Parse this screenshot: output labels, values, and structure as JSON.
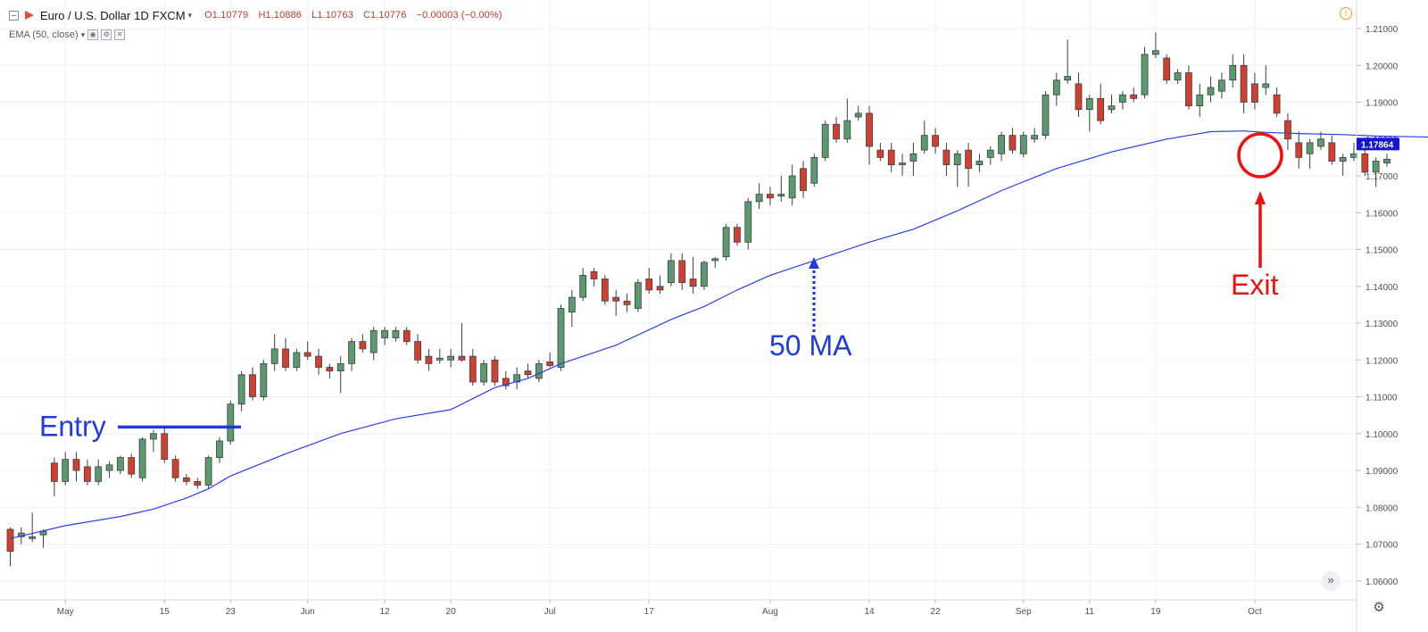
{
  "header": {
    "title": "Euro / U.S. Dollar",
    "interval": "1D",
    "exchange": "FXCM",
    "open": "O1.10779",
    "high": "H1.10886",
    "low": "L1.10763",
    "close": "C1.10776",
    "change": "−0.00003 (−0.00%)"
  },
  "indicator": {
    "label": "EMA (50, close)"
  },
  "colors": {
    "up": "#5b9a6e",
    "down": "#d1402e",
    "ema": "#2d3ef0",
    "annotation_blue": "#1f3ae0",
    "annotation_red": "#ee1111",
    "price_label": "#1414d6"
  },
  "icons": [
    "collapse-icon",
    "flag-icon",
    "chevron-down-icon",
    "eye-icon",
    "gear-icon",
    "close-icon",
    "warning-icon",
    "double-chevron-right-icon",
    "settings-gear-icon"
  ],
  "chart_data": {
    "type": "candlestick",
    "title": "Euro / U.S. Dollar, 1D, FXCM",
    "ylim": [
      1.055,
      1.212
    ],
    "y_ticks": [
      "1.21000",
      "1.20000",
      "1.19000",
      "1.18000",
      "1.17000",
      "1.16000",
      "1.15000",
      "1.14000",
      "1.13000",
      "1.12000",
      "1.11000",
      "1.10000",
      "1.09000",
      "1.08000",
      "1.07000",
      "1.06000"
    ],
    "x_tick_labels": [
      {
        "label": "May",
        "bar": 5
      },
      {
        "label": "15",
        "bar": 14
      },
      {
        "label": "23",
        "bar": 20
      },
      {
        "label": "Jun",
        "bar": 27
      },
      {
        "label": "12",
        "bar": 34
      },
      {
        "label": "20",
        "bar": 40
      },
      {
        "label": "Jul",
        "bar": 49
      },
      {
        "label": "17",
        "bar": 58
      },
      {
        "label": "Aug",
        "bar": 69
      },
      {
        "label": "14",
        "bar": 78
      },
      {
        "label": "22",
        "bar": 84
      },
      {
        "label": "Sep",
        "bar": 92
      },
      {
        "label": "11",
        "bar": 98
      },
      {
        "label": "19",
        "bar": 104
      },
      {
        "label": "Oct",
        "bar": 113
      }
    ],
    "ohlc": [
      [
        1.074,
        1.0745,
        1.064,
        1.068
      ],
      [
        1.072,
        1.0745,
        1.07,
        1.073
      ],
      [
        1.0715,
        1.0785,
        1.0705,
        1.072
      ],
      [
        1.0725,
        1.074,
        1.069,
        1.0735
      ],
      [
        1.092,
        1.0935,
        1.083,
        1.087
      ],
      [
        1.087,
        1.095,
        1.086,
        1.093
      ],
      [
        1.093,
        1.095,
        1.087,
        1.09
      ],
      [
        1.091,
        1.093,
        1.086,
        1.087
      ],
      [
        1.087,
        1.093,
        1.086,
        1.091
      ],
      [
        1.09,
        1.0925,
        1.088,
        1.0915
      ],
      [
        1.09,
        1.094,
        1.089,
        1.0935
      ],
      [
        1.0935,
        1.0945,
        1.088,
        1.089
      ],
      [
        1.088,
        1.099,
        1.087,
        1.0985
      ],
      [
        1.0985,
        1.101,
        1.095,
        1.1
      ],
      [
        1.1,
        1.102,
        1.092,
        1.093
      ],
      [
        1.093,
        1.094,
        1.087,
        1.088
      ],
      [
        1.088,
        1.089,
        1.086,
        1.087
      ],
      [
        1.087,
        1.088,
        1.085,
        1.086
      ],
      [
        1.086,
        1.094,
        1.085,
        1.0935
      ],
      [
        1.0935,
        1.099,
        1.092,
        1.098
      ],
      [
        1.098,
        1.109,
        1.097,
        1.108
      ],
      [
        1.108,
        1.117,
        1.106,
        1.116
      ],
      [
        1.116,
        1.118,
        1.109,
        1.11
      ],
      [
        1.11,
        1.12,
        1.109,
        1.119
      ],
      [
        1.119,
        1.127,
        1.117,
        1.123
      ],
      [
        1.123,
        1.126,
        1.117,
        1.118
      ],
      [
        1.118,
        1.123,
        1.117,
        1.122
      ],
      [
        1.122,
        1.125,
        1.12,
        1.121
      ],
      [
        1.121,
        1.123,
        1.116,
        1.118
      ],
      [
        1.118,
        1.119,
        1.115,
        1.117
      ],
      [
        1.117,
        1.121,
        1.111,
        1.119
      ],
      [
        1.119,
        1.126,
        1.117,
        1.125
      ],
      [
        1.125,
        1.127,
        1.122,
        1.123
      ],
      [
        1.122,
        1.129,
        1.12,
        1.128
      ],
      [
        1.126,
        1.129,
        1.124,
        1.128
      ],
      [
        1.126,
        1.129,
        1.125,
        1.128
      ],
      [
        1.128,
        1.129,
        1.124,
        1.125
      ],
      [
        1.125,
        1.127,
        1.119,
        1.12
      ],
      [
        1.121,
        1.123,
        1.117,
        1.119
      ],
      [
        1.12,
        1.123,
        1.119,
        1.1205
      ],
      [
        1.12,
        1.123,
        1.118,
        1.121
      ],
      [
        1.121,
        1.13,
        1.1195,
        1.12
      ],
      [
        1.121,
        1.123,
        1.113,
        1.114
      ],
      [
        1.114,
        1.12,
        1.113,
        1.119
      ],
      [
        1.12,
        1.121,
        1.113,
        1.114
      ],
      [
        1.115,
        1.117,
        1.112,
        1.113
      ],
      [
        1.114,
        1.118,
        1.112,
        1.116
      ],
      [
        1.117,
        1.119,
        1.115,
        1.116
      ],
      [
        1.115,
        1.12,
        1.114,
        1.119
      ],
      [
        1.1195,
        1.122,
        1.118,
        1.1185
      ],
      [
        1.118,
        1.135,
        1.117,
        1.134
      ],
      [
        1.133,
        1.139,
        1.129,
        1.137
      ],
      [
        1.137,
        1.145,
        1.136,
        1.143
      ],
      [
        1.144,
        1.145,
        1.14,
        1.142
      ],
      [
        1.142,
        1.143,
        1.135,
        1.136
      ],
      [
        1.137,
        1.139,
        1.132,
        1.136
      ],
      [
        1.136,
        1.138,
        1.133,
        1.135
      ],
      [
        1.134,
        1.142,
        1.133,
        1.141
      ],
      [
        1.142,
        1.145,
        1.138,
        1.139
      ],
      [
        1.14,
        1.143,
        1.138,
        1.139
      ],
      [
        1.141,
        1.149,
        1.14,
        1.147
      ],
      [
        1.147,
        1.149,
        1.139,
        1.141
      ],
      [
        1.142,
        1.148,
        1.138,
        1.14
      ],
      [
        1.14,
        1.147,
        1.139,
        1.1465
      ],
      [
        1.147,
        1.148,
        1.145,
        1.1475
      ],
      [
        1.148,
        1.157,
        1.147,
        1.156
      ],
      [
        1.156,
        1.157,
        1.151,
        1.152
      ],
      [
        1.152,
        1.164,
        1.15,
        1.163
      ],
      [
        1.163,
        1.168,
        1.161,
        1.165
      ],
      [
        1.165,
        1.167,
        1.162,
        1.164
      ],
      [
        1.1645,
        1.17,
        1.163,
        1.165
      ],
      [
        1.164,
        1.173,
        1.162,
        1.17
      ],
      [
        1.172,
        1.174,
        1.164,
        1.166
      ],
      [
        1.168,
        1.176,
        1.167,
        1.175
      ],
      [
        1.175,
        1.185,
        1.174,
        1.184
      ],
      [
        1.184,
        1.186,
        1.179,
        1.18
      ],
      [
        1.18,
        1.191,
        1.179,
        1.185
      ],
      [
        1.186,
        1.189,
        1.185,
        1.187
      ],
      [
        1.187,
        1.189,
        1.173,
        1.178
      ],
      [
        1.177,
        1.179,
        1.174,
        1.175
      ],
      [
        1.177,
        1.179,
        1.171,
        1.173
      ],
      [
        1.173,
        1.176,
        1.17,
        1.1735
      ],
      [
        1.174,
        1.179,
        1.17,
        1.176
      ],
      [
        1.177,
        1.185,
        1.176,
        1.181
      ],
      [
        1.181,
        1.183,
        1.176,
        1.178
      ],
      [
        1.177,
        1.179,
        1.17,
        1.173
      ],
      [
        1.173,
        1.177,
        1.167,
        1.176
      ],
      [
        1.177,
        1.179,
        1.167,
        1.172
      ],
      [
        1.173,
        1.176,
        1.171,
        1.174
      ],
      [
        1.175,
        1.178,
        1.173,
        1.177
      ],
      [
        1.176,
        1.182,
        1.174,
        1.181
      ],
      [
        1.181,
        1.183,
        1.176,
        1.177
      ],
      [
        1.176,
        1.182,
        1.175,
        1.181
      ],
      [
        1.18,
        1.183,
        1.179,
        1.181
      ],
      [
        1.181,
        1.193,
        1.18,
        1.192
      ],
      [
        1.192,
        1.198,
        1.189,
        1.196
      ],
      [
        1.196,
        1.207,
        1.195,
        1.197
      ],
      [
        1.195,
        1.198,
        1.186,
        1.188
      ],
      [
        1.188,
        1.192,
        1.182,
        1.191
      ],
      [
        1.191,
        1.195,
        1.184,
        1.185
      ],
      [
        1.188,
        1.192,
        1.187,
        1.189
      ],
      [
        1.19,
        1.193,
        1.188,
        1.192
      ],
      [
        1.192,
        1.194,
        1.19,
        1.191
      ],
      [
        1.192,
        1.205,
        1.191,
        1.203
      ],
      [
        1.203,
        1.209,
        1.202,
        1.204
      ],
      [
        1.202,
        1.203,
        1.195,
        1.196
      ],
      [
        1.196,
        1.199,
        1.195,
        1.198
      ],
      [
        1.198,
        1.2,
        1.188,
        1.189
      ],
      [
        1.189,
        1.195,
        1.186,
        1.192
      ],
      [
        1.192,
        1.197,
        1.19,
        1.194
      ],
      [
        1.193,
        1.198,
        1.191,
        1.196
      ],
      [
        1.196,
        1.203,
        1.194,
        1.2
      ],
      [
        1.2,
        1.203,
        1.187,
        1.19
      ],
      [
        1.195,
        1.198,
        1.188,
        1.19
      ],
      [
        1.194,
        1.2,
        1.192,
        1.195
      ],
      [
        1.192,
        1.194,
        1.186,
        1.187
      ],
      [
        1.185,
        1.187,
        1.177,
        1.18
      ],
      [
        1.179,
        1.182,
        1.172,
        1.175
      ],
      [
        1.176,
        1.18,
        1.172,
        1.179
      ],
      [
        1.178,
        1.182,
        1.177,
        1.18
      ],
      [
        1.179,
        1.181,
        1.173,
        1.174
      ],
      [
        1.174,
        1.176,
        1.17,
        1.175
      ],
      [
        1.175,
        1.179,
        1.174,
        1.176
      ],
      [
        1.176,
        1.178,
        1.17,
        1.171
      ],
      [
        1.171,
        1.175,
        1.167,
        1.174
      ],
      [
        1.1735,
        1.176,
        1.1725,
        1.1745
      ]
    ],
    "ema_series": {
      "name": "EMA (50, close)",
      "values": [
        [
          0,
          1.0715
        ],
        [
          5,
          1.075
        ],
        [
          10,
          1.0775
        ],
        [
          13,
          1.0795
        ],
        [
          16,
          1.0825
        ],
        [
          18,
          1.085
        ],
        [
          20,
          1.0885
        ],
        [
          25,
          1.0945
        ],
        [
          30,
          1.1
        ],
        [
          35,
          1.104
        ],
        [
          40,
          1.1065
        ],
        [
          44,
          1.1125
        ],
        [
          47,
          1.115
        ],
        [
          50,
          1.119
        ],
        [
          55,
          1.124
        ],
        [
          60,
          1.131
        ],
        [
          63,
          1.1345
        ],
        [
          66,
          1.139
        ],
        [
          69,
          1.143
        ],
        [
          74,
          1.148
        ],
        [
          78,
          1.152
        ],
        [
          82,
          1.1555
        ],
        [
          86,
          1.1605
        ],
        [
          90,
          1.166
        ],
        [
          95,
          1.172
        ],
        [
          100,
          1.1765
        ],
        [
          105,
          1.18
        ],
        [
          109,
          1.182
        ],
        [
          112,
          1.1822
        ],
        [
          114,
          1.1818
        ],
        [
          117,
          1.1815
        ],
        [
          121,
          1.1812
        ],
        [
          124,
          1.1808
        ],
        [
          128,
          1.1806
        ],
        [
          132,
          1.1802
        ],
        [
          135,
          1.1797
        ],
        [
          138,
          1.1792
        ],
        [
          141,
          1.1788
        ],
        [
          145,
          1.1787
        ],
        [
          148,
          1.1786
        ],
        [
          151,
          1.1786
        ],
        [
          155,
          1.1786
        ]
      ],
      "last_value": "1.17864"
    },
    "annotations": [
      {
        "text": "Entry",
        "color": "#1f3ae0",
        "price": 1.1018
      },
      {
        "text": "50 MA",
        "color": "#1f3ae0"
      },
      {
        "text": "Exit",
        "color": "#ee1111"
      }
    ]
  }
}
